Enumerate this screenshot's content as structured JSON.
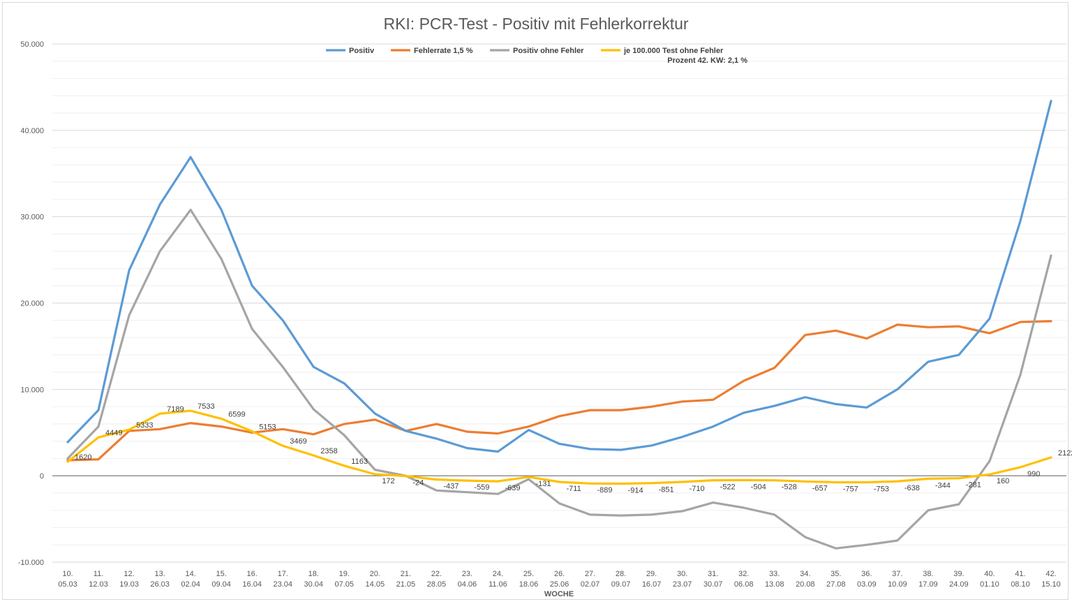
{
  "chart_data": {
    "type": "line",
    "title": "RKI: PCR-Test - Positiv mit Fehlerkorrektur",
    "xlabel": "WOCHE",
    "ylabel": "",
    "ylim": [
      -10000,
      50000
    ],
    "grid": true,
    "legend_position": "top",
    "annotation": "Prozent 42. KW: 2,1 %",
    "y_ticks": [
      {
        "value": 50000,
        "label": "50.000"
      },
      {
        "value": 40000,
        "label": "40.000"
      },
      {
        "value": 30000,
        "label": "30.000"
      },
      {
        "value": 20000,
        "label": "20.000"
      },
      {
        "value": 10000,
        "label": "10.000"
      },
      {
        "value": 0,
        "label": "0"
      },
      {
        "value": -10000,
        "label": "-10.000"
      }
    ],
    "categories": [
      {
        "week": "10.",
        "date": "05.03"
      },
      {
        "week": "11.",
        "date": "12.03"
      },
      {
        "week": "12.",
        "date": "19.03"
      },
      {
        "week": "13.",
        "date": "26.03"
      },
      {
        "week": "14.",
        "date": "02.04"
      },
      {
        "week": "15.",
        "date": "09.04"
      },
      {
        "week": "16.",
        "date": "16.04"
      },
      {
        "week": "17.",
        "date": "23.04"
      },
      {
        "week": "18.",
        "date": "30.04"
      },
      {
        "week": "19.",
        "date": "07.05"
      },
      {
        "week": "20.",
        "date": "14.05"
      },
      {
        "week": "21.",
        "date": "21.05"
      },
      {
        "week": "22.",
        "date": "28.05"
      },
      {
        "week": "23.",
        "date": "04.06"
      },
      {
        "week": "24.",
        "date": "11.06"
      },
      {
        "week": "25.",
        "date": "18.06"
      },
      {
        "week": "26.",
        "date": "25.06"
      },
      {
        "week": "27.",
        "date": "02.07"
      },
      {
        "week": "28.",
        "date": "09.07"
      },
      {
        "week": "29.",
        "date": "16.07"
      },
      {
        "week": "30.",
        "date": "23.07"
      },
      {
        "week": "31.",
        "date": "30.07"
      },
      {
        "week": "32.",
        "date": "06.08"
      },
      {
        "week": "33.",
        "date": "13.08"
      },
      {
        "week": "34.",
        "date": "20.08"
      },
      {
        "week": "35.",
        "date": "27.08"
      },
      {
        "week": "36.",
        "date": "03.09"
      },
      {
        "week": "37.",
        "date": "10.09"
      },
      {
        "week": "38.",
        "date": "17.09"
      },
      {
        "week": "39.",
        "date": "24.09"
      },
      {
        "week": "40.",
        "date": "01.10"
      },
      {
        "week": "41.",
        "date": "08.10"
      },
      {
        "week": "42.",
        "date": "15.10"
      }
    ],
    "series": [
      {
        "name": "Positiv",
        "color": "#5b9bd5",
        "values": [
          3900,
          7600,
          23800,
          31400,
          36900,
          30800,
          22000,
          18000,
          12600,
          10700,
          7200,
          5200,
          4300,
          3200,
          2800,
          5300,
          3700,
          3100,
          3000,
          3500,
          4500,
          5700,
          7300,
          8100,
          9100,
          8300,
          7900,
          10000,
          13200,
          14000,
          18200,
          29500,
          43400
        ]
      },
      {
        "name": "Fehlerrate 1,5 %",
        "color": "#ed7d31",
        "values": [
          1800,
          1900,
          5200,
          5400,
          6100,
          5700,
          5000,
          5400,
          4800,
          6000,
          6500,
          5200,
          6000,
          5100,
          4900,
          5700,
          6900,
          7600,
          7600,
          8000,
          8600,
          8800,
          11000,
          12500,
          16300,
          16800,
          15900,
          17500,
          17200,
          17300,
          16500,
          17800,
          17900
        ]
      },
      {
        "name": "Positiv ohne Fehler",
        "color": "#a5a5a5",
        "values": [
          2000,
          5700,
          18600,
          26000,
          30800,
          25100,
          17000,
          12600,
          7700,
          4700,
          700,
          0,
          -1700,
          -1900,
          -2100,
          -400,
          -3200,
          -4500,
          -4600,
          -4500,
          -4100,
          -3100,
          -3700,
          -4500,
          -7100,
          -8400,
          -8000,
          -7500,
          -4000,
          -3300,
          1700,
          11700,
          25500
        ]
      },
      {
        "name": "je 100.000 Test ohne Fehler",
        "color": "#ffc000",
        "values": [
          1620,
          4449,
          5333,
          7189,
          7533,
          6599,
          5153,
          3469,
          2358,
          1163,
          172,
          -24,
          -437,
          -559,
          -639,
          -131,
          -711,
          -889,
          -914,
          -851,
          -710,
          -522,
          -504,
          -528,
          -657,
          -757,
          -753,
          -638,
          -344,
          -281,
          160,
          990,
          2122
        ],
        "data_labels": [
          "1620",
          "4449",
          "5333",
          "7189",
          "7533",
          "6599",
          "5153",
          "3469",
          "2358",
          "1163",
          "172",
          "-24",
          "-437",
          "-559",
          "-639",
          "-131",
          "-711",
          "-889",
          "-914",
          "-851",
          "-710",
          "-522",
          "-504",
          "-528",
          "-657",
          "-757",
          "-753",
          "-638",
          "-344",
          "-281",
          "160",
          "990",
          "2122"
        ]
      }
    ]
  }
}
